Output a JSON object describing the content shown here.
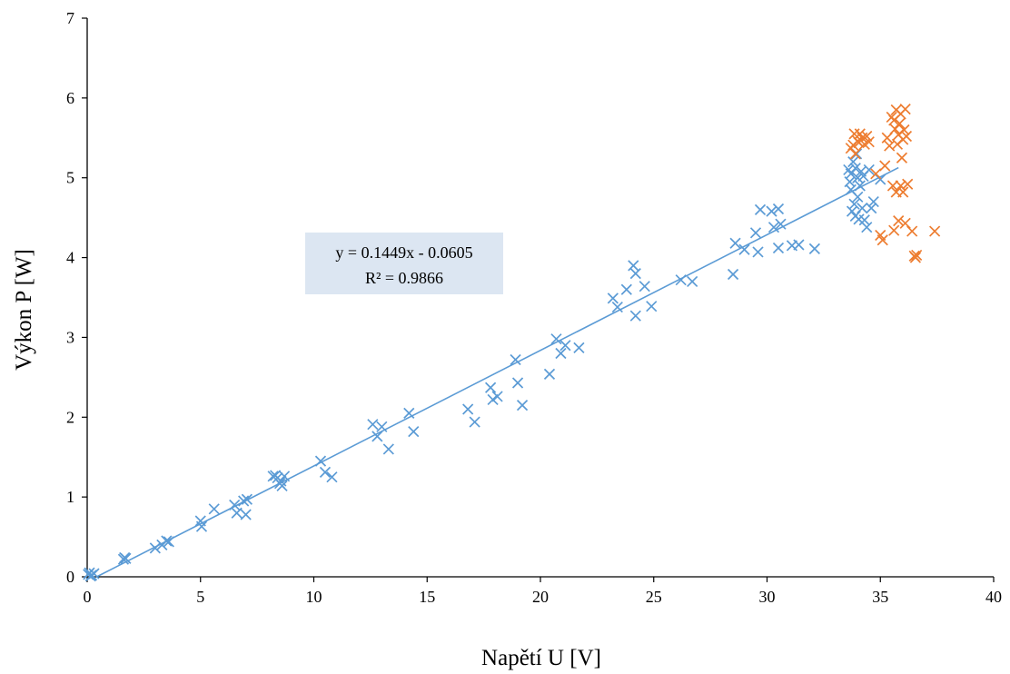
{
  "chart_data": {
    "type": "scatter",
    "xlabel": "Napětí U [V]",
    "ylabel": "Výkon P [W]",
    "xlim": [
      0,
      40
    ],
    "ylim": [
      0,
      7
    ],
    "x_ticks": [
      "0",
      "5",
      "10",
      "15",
      "20",
      "25",
      "30",
      "35",
      "40"
    ],
    "y_ticks": [
      "0",
      "1",
      "2",
      "3",
      "4",
      "5",
      "6",
      "7"
    ],
    "grid": false,
    "marker": "x",
    "trendline": {
      "series": 0,
      "slope": 0.1449,
      "intercept": -0.0605,
      "x_range": [
        0,
        35.8
      ],
      "equation_label": "y = 0.1449x - 0.0605",
      "r2_label": "R² = 0.9866"
    },
    "series": [
      {
        "color": "#5b9bd5",
        "points": [
          [
            0.05,
            0.03
          ],
          [
            0.1,
            0.05
          ],
          [
            0.2,
            0.02
          ],
          [
            0.3,
            0.04
          ],
          [
            0.15,
            0.01
          ],
          [
            1.6,
            0.22
          ],
          [
            1.65,
            0.24
          ],
          [
            1.7,
            0.23
          ],
          [
            3.0,
            0.36
          ],
          [
            3.3,
            0.4
          ],
          [
            3.5,
            0.45
          ],
          [
            3.6,
            0.44
          ],
          [
            5.0,
            0.7
          ],
          [
            5.05,
            0.63
          ],
          [
            5.6,
            0.85
          ],
          [
            6.5,
            0.9
          ],
          [
            6.6,
            0.8
          ],
          [
            6.9,
            0.95
          ],
          [
            7.0,
            0.78
          ],
          [
            7.05,
            0.97
          ],
          [
            8.2,
            1.26
          ],
          [
            8.3,
            1.27
          ],
          [
            8.4,
            1.24
          ],
          [
            8.5,
            1.17
          ],
          [
            8.55,
            1.2
          ],
          [
            8.6,
            1.14
          ],
          [
            8.7,
            1.26
          ],
          [
            10.3,
            1.45
          ],
          [
            10.5,
            1.31
          ],
          [
            10.8,
            1.25
          ],
          [
            12.6,
            1.91
          ],
          [
            12.8,
            1.76
          ],
          [
            13.0,
            1.88
          ],
          [
            13.3,
            1.6
          ],
          [
            14.2,
            2.05
          ],
          [
            14.4,
            1.82
          ],
          [
            16.8,
            2.1
          ],
          [
            17.1,
            1.94
          ],
          [
            17.8,
            2.37
          ],
          [
            17.9,
            2.22
          ],
          [
            18.1,
            2.26
          ],
          [
            18.9,
            2.72
          ],
          [
            19.0,
            2.43
          ],
          [
            19.2,
            2.15
          ],
          [
            20.4,
            2.54
          ],
          [
            20.7,
            2.98
          ],
          [
            20.9,
            2.8
          ],
          [
            21.1,
            2.9
          ],
          [
            21.7,
            2.87
          ],
          [
            23.2,
            3.49
          ],
          [
            23.4,
            3.38
          ],
          [
            23.8,
            3.6
          ],
          [
            24.1,
            3.9
          ],
          [
            24.2,
            3.8
          ],
          [
            24.2,
            3.27
          ],
          [
            24.6,
            3.64
          ],
          [
            24.9,
            3.39
          ],
          [
            26.2,
            3.72
          ],
          [
            26.7,
            3.7
          ],
          [
            28.5,
            3.79
          ],
          [
            28.6,
            4.18
          ],
          [
            29.0,
            4.1
          ],
          [
            29.5,
            4.31
          ],
          [
            29.6,
            4.07
          ],
          [
            29.7,
            4.6
          ],
          [
            30.2,
            4.58
          ],
          [
            30.3,
            4.38
          ],
          [
            30.5,
            4.61
          ],
          [
            30.5,
            4.12
          ],
          [
            30.6,
            4.42
          ],
          [
            31.1,
            4.15
          ],
          [
            31.4,
            4.16
          ],
          [
            32.1,
            4.11
          ],
          [
            33.6,
            5.1
          ],
          [
            33.65,
            4.95
          ],
          [
            33.7,
            5.05
          ],
          [
            33.7,
            4.85
          ],
          [
            33.75,
            4.58
          ],
          [
            33.8,
            5.2
          ],
          [
            33.85,
            4.67
          ],
          [
            33.9,
            5.12
          ],
          [
            33.9,
            4.52
          ],
          [
            33.95,
            5.3
          ],
          [
            34.0,
            4.76
          ],
          [
            34.0,
            5.0
          ],
          [
            34.05,
            4.48
          ],
          [
            34.1,
            4.9
          ],
          [
            34.15,
            5.08
          ],
          [
            34.2,
            4.62
          ],
          [
            34.25,
            5.02
          ],
          [
            34.3,
            4.47
          ],
          [
            34.4,
            4.38
          ],
          [
            34.5,
            5.1
          ],
          [
            34.6,
            4.62
          ],
          [
            34.7,
            4.7
          ],
          [
            35.0,
            4.98
          ]
        ]
      },
      {
        "color": "#ed7d31",
        "points": [
          [
            33.7,
            5.37
          ],
          [
            33.8,
            5.41
          ],
          [
            33.85,
            5.55
          ],
          [
            33.9,
            5.3
          ],
          [
            34.0,
            5.46
          ],
          [
            34.05,
            5.44
          ],
          [
            34.1,
            5.55
          ],
          [
            34.2,
            5.5
          ],
          [
            34.3,
            5.42
          ],
          [
            34.4,
            5.52
          ],
          [
            34.5,
            5.45
          ],
          [
            34.8,
            5.05
          ],
          [
            35.0,
            4.28
          ],
          [
            35.1,
            4.22
          ],
          [
            35.2,
            5.15
          ],
          [
            35.3,
            5.5
          ],
          [
            35.4,
            5.4
          ],
          [
            35.5,
            5.76
          ],
          [
            35.55,
            4.9
          ],
          [
            35.6,
            5.72
          ],
          [
            35.6,
            4.34
          ],
          [
            35.65,
            5.61
          ],
          [
            35.7,
            4.82
          ],
          [
            35.7,
            5.85
          ],
          [
            35.75,
            5.42
          ],
          [
            35.8,
            5.54
          ],
          [
            35.8,
            4.46
          ],
          [
            35.85,
            5.68
          ],
          [
            35.9,
            5.8
          ],
          [
            35.9,
            4.9
          ],
          [
            35.95,
            5.25
          ],
          [
            36.0,
            5.48
          ],
          [
            36.0,
            4.82
          ],
          [
            36.05,
            5.6
          ],
          [
            36.1,
            5.86
          ],
          [
            36.1,
            4.43
          ],
          [
            36.15,
            5.52
          ],
          [
            36.2,
            4.92
          ],
          [
            36.4,
            4.33
          ],
          [
            36.5,
            4.02
          ],
          [
            36.55,
            4.0
          ],
          [
            36.6,
            4.03
          ],
          [
            37.4,
            4.33
          ]
        ]
      }
    ]
  }
}
